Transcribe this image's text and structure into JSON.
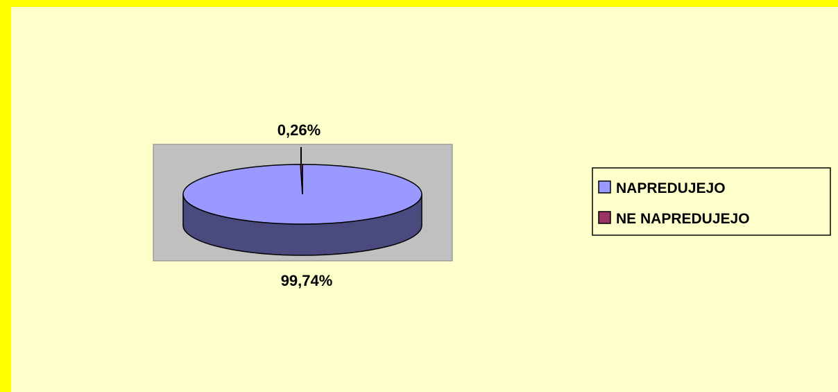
{
  "chart_data": {
    "type": "pie",
    "style": "3d",
    "categories": [
      "NAPREDUJEJO",
      "NE NAPREDUJEJO"
    ],
    "values": [
      99.74,
      0.26
    ],
    "unit": "%",
    "data_labels": [
      "99,74%",
      "0,26%"
    ],
    "legend": {
      "position": "right",
      "entries": [
        "NAPREDUJEJO",
        "NE NAPREDUJEJO"
      ]
    },
    "colors": {
      "NAPREDUJEJO": "#9999FF",
      "NAPREDUJEJO_side": "#4B4A7E",
      "NE NAPREDUJEJO": "#993366",
      "plot_area": "#C0C0C0",
      "chart_area": "#FFFFCC",
      "frame_border": "#FFFF00"
    }
  }
}
